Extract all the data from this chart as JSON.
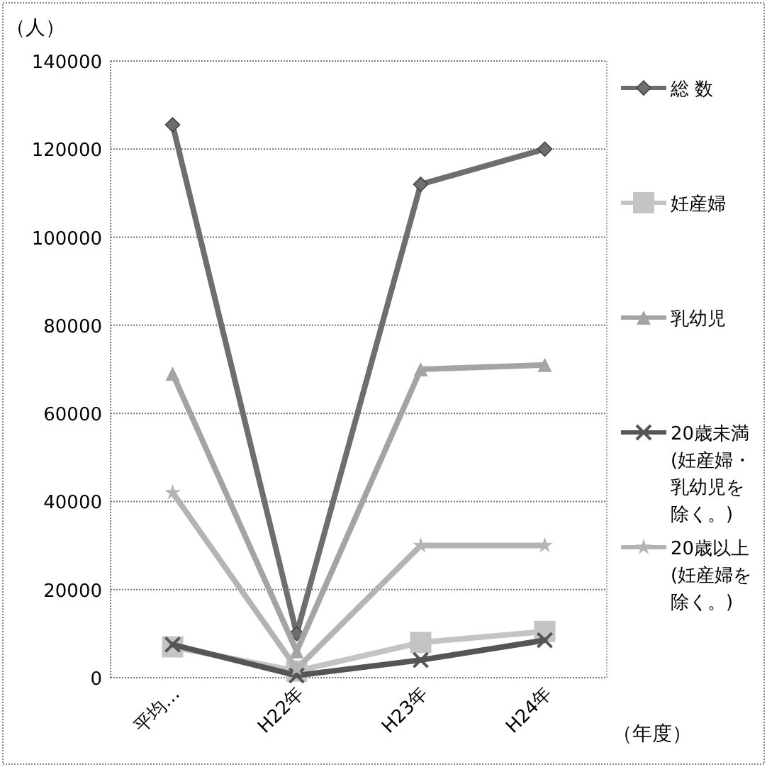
{
  "chart_data": {
    "type": "line",
    "ylabel": "（人）",
    "xlabel": "（年度）",
    "categories": [
      "平均…",
      "H22年",
      "H23年",
      "H24年"
    ],
    "ylim": [
      0,
      140000
    ],
    "yticks": [
      0,
      20000,
      40000,
      60000,
      80000,
      100000,
      120000,
      140000
    ],
    "grid": "y",
    "legend": "right",
    "line_style": "solid",
    "series": [
      {
        "name": "総 数",
        "color": "#6e6e6e",
        "marker": "diamond",
        "values": [
          125500,
          10000,
          112000,
          120000
        ]
      },
      {
        "name": "妊産婦",
        "color": "#c4c4c4",
        "marker": "square",
        "values": [
          7000,
          1500,
          8000,
          10500
        ]
      },
      {
        "name": "乳幼児",
        "color": "#a4a4a4",
        "marker": "triangle",
        "values": [
          69000,
          6000,
          70000,
          71000
        ]
      },
      {
        "name": "20歳未満(妊産婦・乳幼児を除く。)",
        "color": "#555555",
        "marker": "cross",
        "values": [
          7500,
          500,
          4000,
          8500
        ]
      },
      {
        "name": "20歳以上(妊産婦を除く。)",
        "color": "#b4b4b4",
        "marker": "star",
        "values": [
          42000,
          2000,
          30000,
          30000
        ]
      }
    ]
  }
}
